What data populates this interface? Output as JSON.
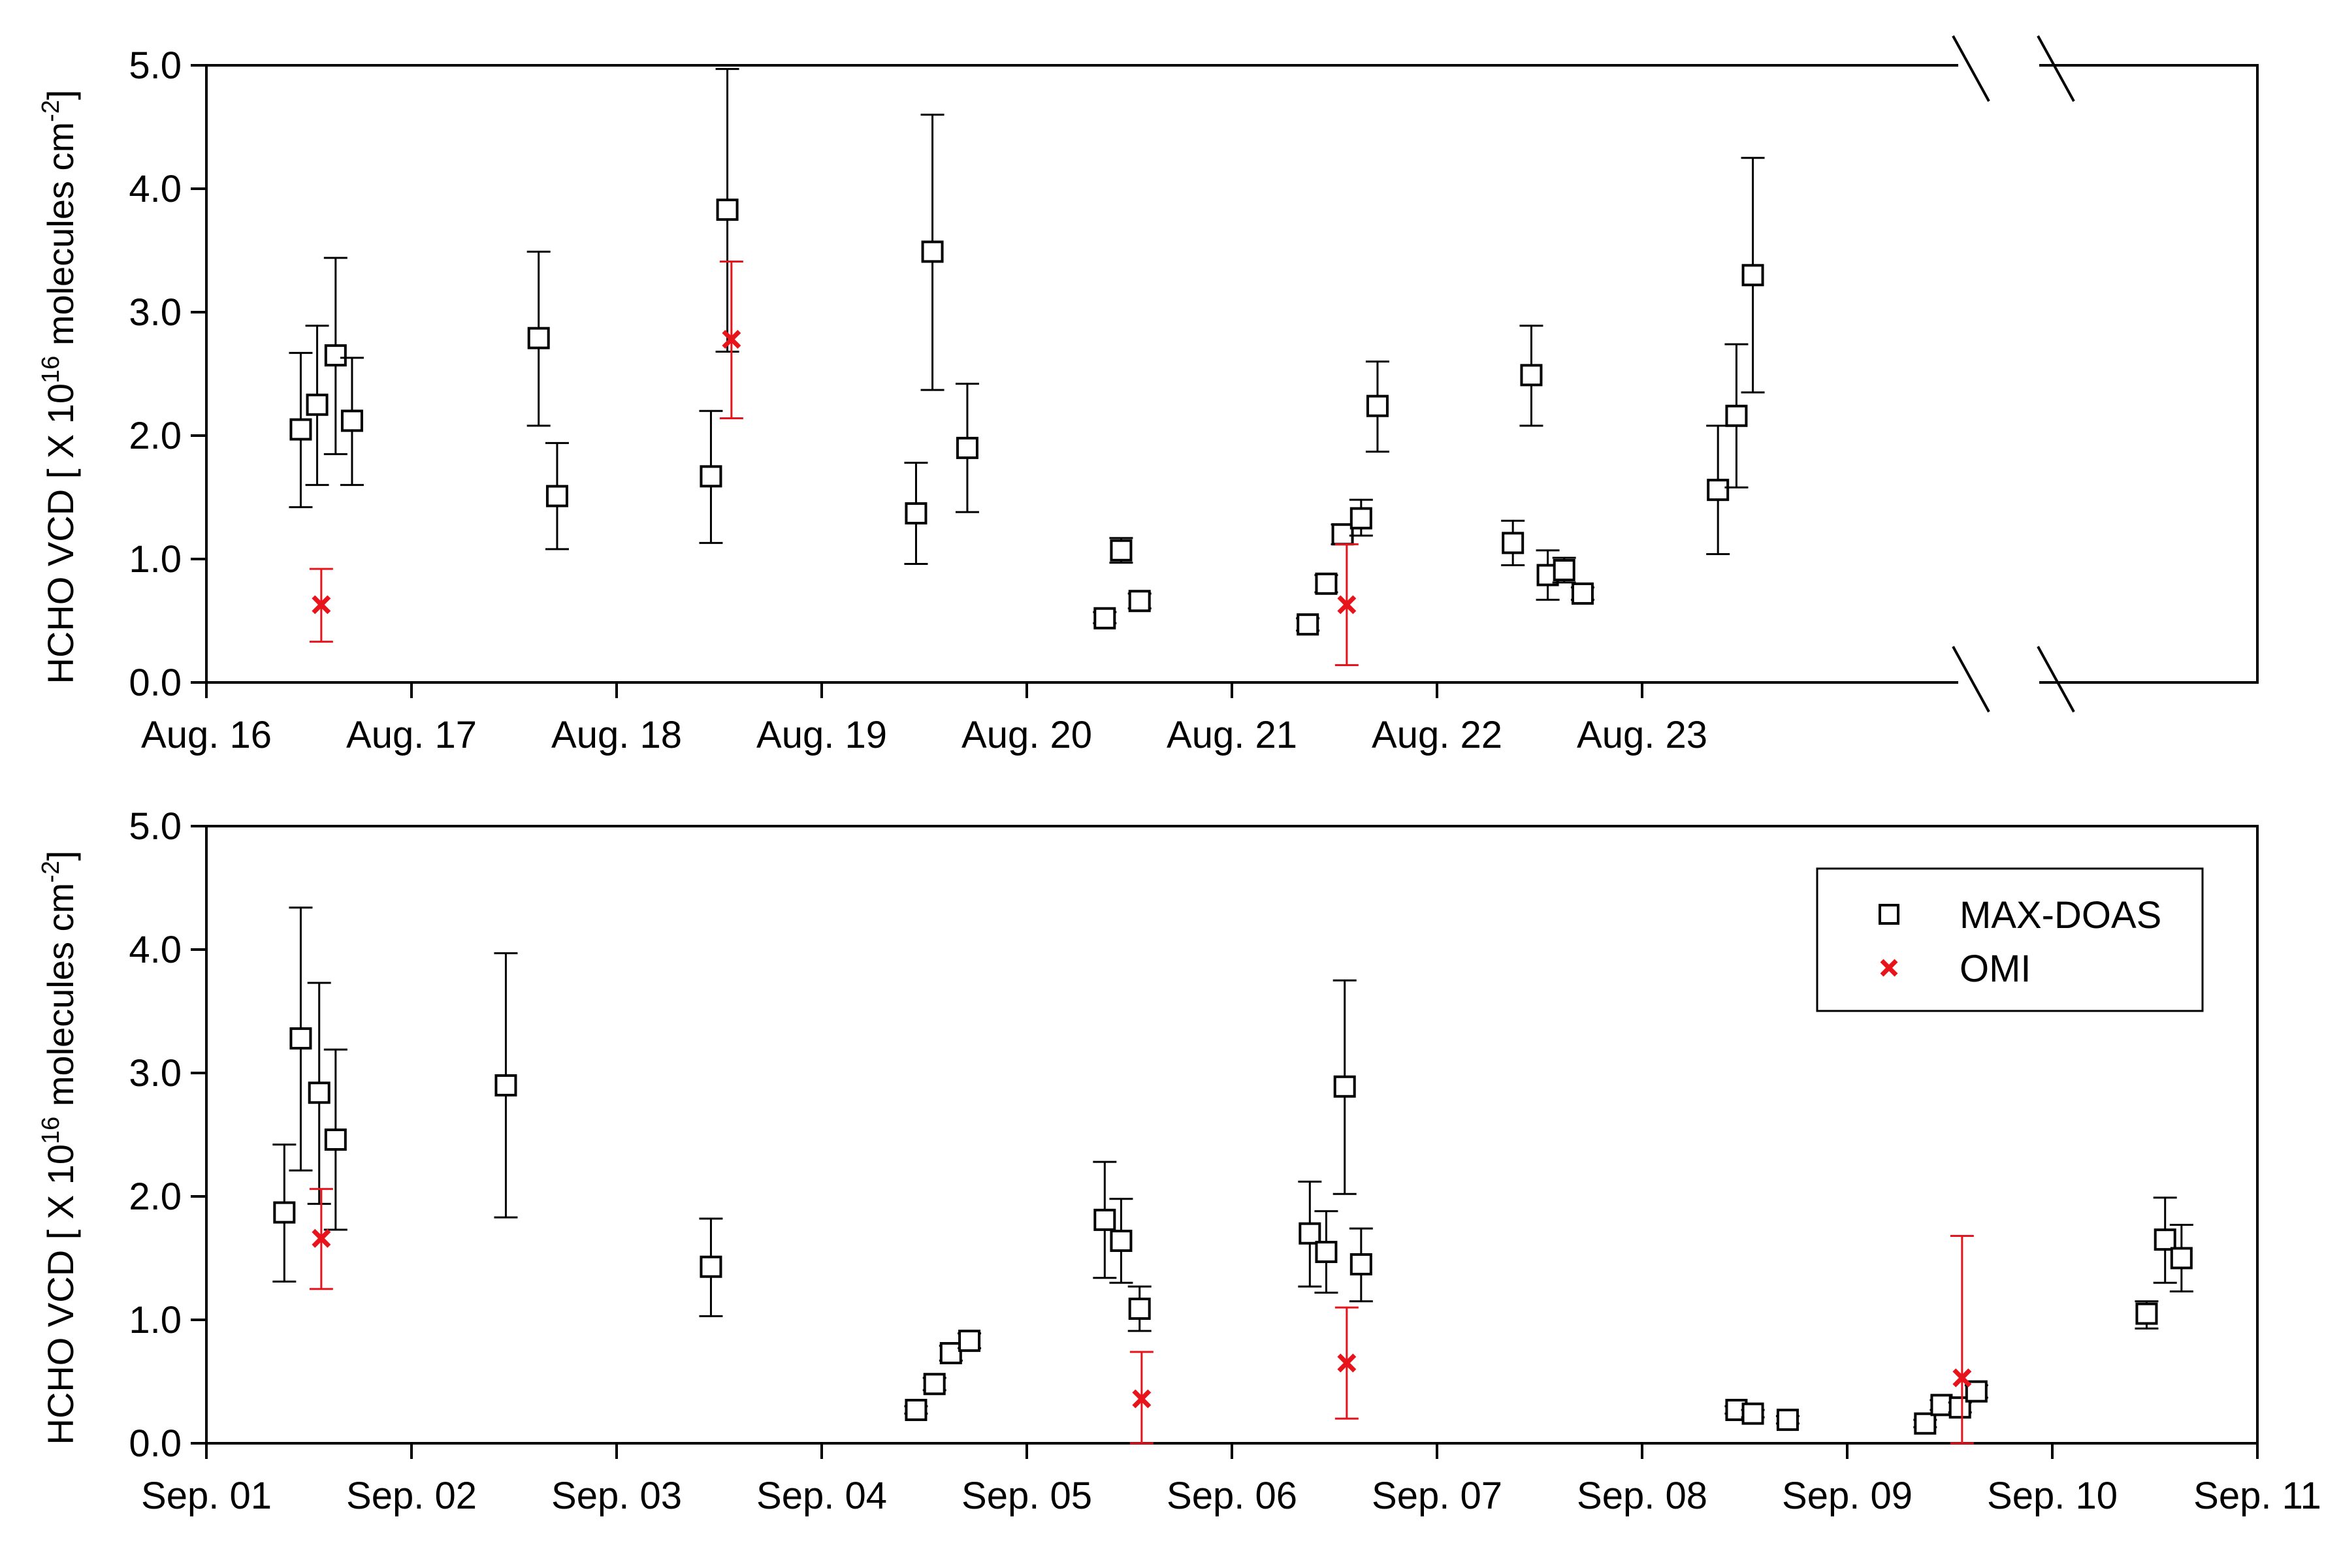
{
  "chart_data": [
    {
      "type": "scatter",
      "title": "",
      "xlabel": "",
      "ylabel": "HCHO VCD [ X 10^16 molecules cm^-2]",
      "ylabel_parts": {
        "a": "HCHO VCD [ X 10",
        "exp1": "16",
        "b": " molecules cm",
        "exp2": "-2",
        "c": "]"
      },
      "ylim": [
        0,
        5
      ],
      "yticks": [
        "0.0",
        "1.0",
        "2.0",
        "3.0",
        "4.0",
        "5.0"
      ],
      "xlim": [
        0,
        10
      ],
      "xticks": [
        "Aug. 16",
        "Aug. 17",
        "Aug. 18",
        "Aug. 19",
        "Aug. 20",
        "Aug. 21",
        "Aug. 22",
        "Aug. 23"
      ],
      "axis_break": true,
      "grid": false,
      "colors": {
        "MAX-DOAS": "#000000",
        "OMI": "#e8141c"
      },
      "series": [
        {
          "name": "MAX-DOAS",
          "marker": "open-square",
          "points": [
            {
              "x": 0.46,
              "y": 2.05,
              "lo": 1.42,
              "hi": 2.67
            },
            {
              "x": 0.54,
              "y": 2.25,
              "lo": 1.6,
              "hi": 2.89
            },
            {
              "x": 0.63,
              "y": 2.65,
              "lo": 1.85,
              "hi": 3.44
            },
            {
              "x": 0.71,
              "y": 2.12,
              "lo": 1.6,
              "hi": 2.63
            },
            {
              "x": 1.62,
              "y": 2.79,
              "lo": 2.08,
              "hi": 3.49
            },
            {
              "x": 1.71,
              "y": 1.51,
              "lo": 1.08,
              "hi": 1.94
            },
            {
              "x": 2.46,
              "y": 1.67,
              "lo": 1.13,
              "hi": 2.2
            },
            {
              "x": 2.54,
              "y": 3.83,
              "lo": 2.68,
              "hi": 4.97
            },
            {
              "x": 3.46,
              "y": 1.37,
              "lo": 0.96,
              "hi": 1.78
            },
            {
              "x": 3.54,
              "y": 3.49,
              "lo": 2.37,
              "hi": 4.6
            },
            {
              "x": 3.71,
              "y": 1.9,
              "lo": 1.38,
              "hi": 2.42
            },
            {
              "x": 4.38,
              "y": 0.52,
              "lo": 0.48,
              "hi": 0.57
            },
            {
              "x": 4.46,
              "y": 1.07,
              "lo": 0.97,
              "hi": 1.17
            },
            {
              "x": 4.55,
              "y": 0.66,
              "lo": 0.6,
              "hi": 0.72
            },
            {
              "x": 5.37,
              "y": 0.47,
              "lo": 0.42,
              "hi": 0.52
            },
            {
              "x": 5.46,
              "y": 0.8,
              "lo": 0.73,
              "hi": 0.87
            },
            {
              "x": 5.54,
              "y": 1.2,
              "lo": 1.12,
              "hi": 1.28
            },
            {
              "x": 5.63,
              "y": 1.33,
              "lo": 1.19,
              "hi": 1.48
            },
            {
              "x": 5.71,
              "y": 2.24,
              "lo": 1.87,
              "hi": 2.6
            },
            {
              "x": 6.37,
              "y": 1.13,
              "lo": 0.95,
              "hi": 1.31
            },
            {
              "x": 6.46,
              "y": 2.49,
              "lo": 2.08,
              "hi": 2.89
            },
            {
              "x": 6.54,
              "y": 0.87,
              "lo": 0.67,
              "hi": 1.07
            },
            {
              "x": 6.62,
              "y": 0.91,
              "lo": 0.81,
              "hi": 1.01
            },
            {
              "x": 6.71,
              "y": 0.72,
              "lo": 0.67,
              "hi": 0.77
            },
            {
              "x": 7.37,
              "y": 1.56,
              "lo": 1.04,
              "hi": 2.08
            },
            {
              "x": 7.46,
              "y": 2.16,
              "lo": 1.58,
              "hi": 2.74
            },
            {
              "x": 7.54,
              "y": 3.3,
              "lo": 2.35,
              "hi": 4.25
            }
          ]
        },
        {
          "name": "OMI",
          "marker": "x",
          "points": [
            {
              "x": 0.56,
              "y": 0.63,
              "lo": 0.33,
              "hi": 0.92
            },
            {
              "x": 2.56,
              "y": 2.78,
              "lo": 2.14,
              "hi": 3.41
            },
            {
              "x": 5.56,
              "y": 0.63,
              "lo": 0.14,
              "hi": 1.12
            }
          ]
        }
      ]
    },
    {
      "type": "scatter",
      "title": "",
      "xlabel": "",
      "ylabel": "HCHO VCD [ X 10^16 molecules cm^-2]",
      "ylabel_parts": {
        "a": "HCHO VCD [ X 10",
        "exp1": "16",
        "b": " molecules cm",
        "exp2": "-2",
        "c": "]"
      },
      "ylim": [
        0,
        5
      ],
      "yticks": [
        "0.0",
        "1.0",
        "2.0",
        "3.0",
        "4.0",
        "5.0"
      ],
      "xlim": [
        0,
        10
      ],
      "xticks": [
        "Sep. 01",
        "Sep. 02",
        "Sep. 03",
        "Sep. 04",
        "Sep. 05",
        "Sep. 06",
        "Sep. 07",
        "Sep. 08",
        "Sep. 09",
        "Sep. 10",
        "Sep. 11"
      ],
      "axis_break": false,
      "grid": false,
      "legend": {
        "position": "top-right",
        "entries": [
          "MAX-DOAS",
          "OMI"
        ]
      },
      "colors": {
        "MAX-DOAS": "#000000",
        "OMI": "#e8141c"
      },
      "series": [
        {
          "name": "MAX-DOAS",
          "marker": "open-square",
          "points": [
            {
              "x": 0.38,
              "y": 1.87,
              "lo": 1.31,
              "hi": 2.42
            },
            {
              "x": 0.46,
              "y": 3.28,
              "lo": 2.21,
              "hi": 4.34
            },
            {
              "x": 0.55,
              "y": 2.84,
              "lo": 1.94,
              "hi": 3.73
            },
            {
              "x": 0.63,
              "y": 2.46,
              "lo": 1.73,
              "hi": 3.19
            },
            {
              "x": 1.46,
              "y": 2.9,
              "lo": 1.83,
              "hi": 3.97
            },
            {
              "x": 2.46,
              "y": 1.43,
              "lo": 1.03,
              "hi": 1.82
            },
            {
              "x": 3.46,
              "y": 0.27,
              "lo": 0.24,
              "hi": 0.3
            },
            {
              "x": 3.55,
              "y": 0.48,
              "lo": 0.43,
              "hi": 0.53
            },
            {
              "x": 3.63,
              "y": 0.73,
              "lo": 0.67,
              "hi": 0.79
            },
            {
              "x": 3.72,
              "y": 0.83,
              "lo": 0.77,
              "hi": 0.89
            },
            {
              "x": 4.38,
              "y": 1.81,
              "lo": 1.34,
              "hi": 2.28
            },
            {
              "x": 4.46,
              "y": 1.64,
              "lo": 1.3,
              "hi": 1.98
            },
            {
              "x": 4.55,
              "y": 1.09,
              "lo": 0.91,
              "hi": 1.27
            },
            {
              "x": 5.38,
              "y": 1.7,
              "lo": 1.27,
              "hi": 2.12
            },
            {
              "x": 5.46,
              "y": 1.55,
              "lo": 1.22,
              "hi": 1.88
            },
            {
              "x": 5.55,
              "y": 2.89,
              "lo": 2.02,
              "hi": 3.75
            },
            {
              "x": 5.63,
              "y": 1.45,
              "lo": 1.15,
              "hi": 1.74
            },
            {
              "x": 7.46,
              "y": 0.27,
              "lo": 0.24,
              "hi": 0.3
            },
            {
              "x": 7.54,
              "y": 0.24,
              "lo": 0.21,
              "hi": 0.27
            },
            {
              "x": 7.71,
              "y": 0.19,
              "lo": 0.16,
              "hi": 0.22
            },
            {
              "x": 8.38,
              "y": 0.16,
              "lo": 0.13,
              "hi": 0.19
            },
            {
              "x": 8.46,
              "y": 0.31,
              "lo": 0.27,
              "hi": 0.35
            },
            {
              "x": 8.55,
              "y": 0.29,
              "lo": 0.25,
              "hi": 0.33
            },
            {
              "x": 8.63,
              "y": 0.42,
              "lo": 0.37,
              "hi": 0.47
            },
            {
              "x": 9.46,
              "y": 1.05,
              "lo": 0.93,
              "hi": 1.15
            },
            {
              "x": 9.55,
              "y": 1.65,
              "lo": 1.3,
              "hi": 1.99
            },
            {
              "x": 9.63,
              "y": 1.5,
              "lo": 1.23,
              "hi": 1.77
            }
          ]
        },
        {
          "name": "OMI",
          "marker": "x",
          "points": [
            {
              "x": 0.56,
              "y": 1.66,
              "lo": 1.25,
              "hi": 2.06
            },
            {
              "x": 4.56,
              "y": 0.36,
              "lo": 0.0,
              "hi": 0.74
            },
            {
              "x": 5.56,
              "y": 0.65,
              "lo": 0.2,
              "hi": 1.1
            },
            {
              "x": 8.56,
              "y": 0.53,
              "lo": 0.0,
              "hi": 1.68
            }
          ]
        }
      ]
    }
  ]
}
